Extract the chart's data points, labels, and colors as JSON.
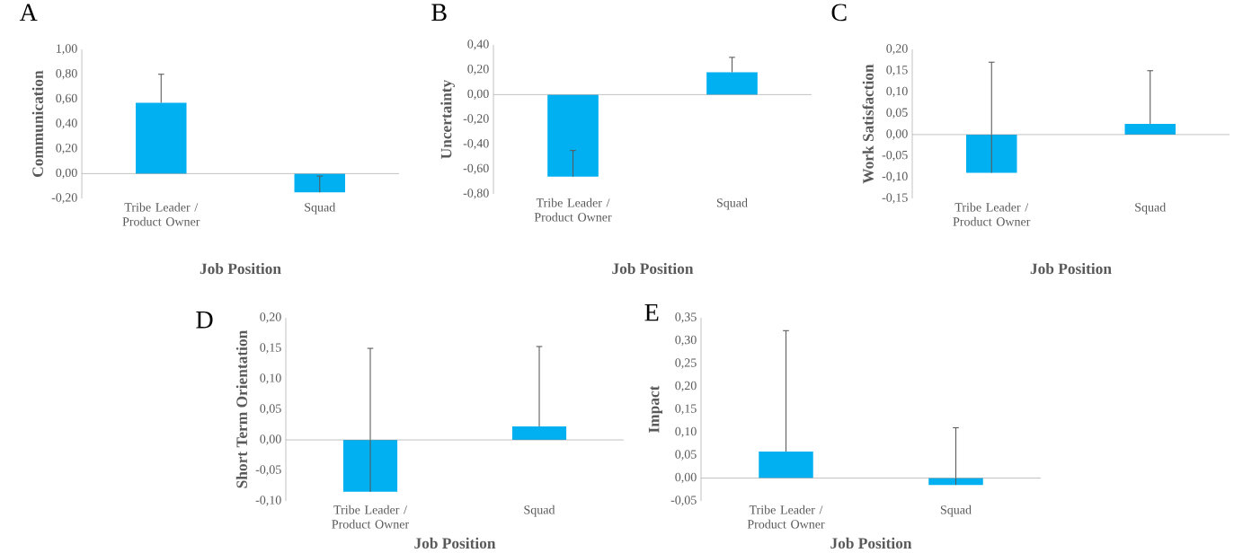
{
  "chart_data": [
    {
      "type": "bar",
      "title": "A",
      "xlabel": "Job Position",
      "ylabel": "Communication",
      "categories": [
        "Tribe Leader / Product Owner",
        "Squad"
      ],
      "values": [
        0.57,
        -0.15
      ],
      "errors": [
        [
          0.57,
          0.8
        ],
        [
          -0.15,
          -0.02
        ]
      ],
      "color": "#00b0f0",
      "ylim": [
        -0.2,
        1.0
      ],
      "yticks": [
        {
          "value": -0.2,
          "label": "-0,20"
        },
        {
          "value": 0,
          "label": "0,00"
        },
        {
          "value": 0.2,
          "label": "0,20"
        },
        {
          "value": 0.4,
          "label": "0,40"
        },
        {
          "value": 0.6,
          "label": "0,60"
        },
        {
          "value": 0.8,
          "label": "0,80"
        },
        {
          "value": 1.0,
          "label": "1,00"
        }
      ]
    },
    {
      "type": "bar",
      "title": "B",
      "xlabel": "Job Position",
      "ylabel": "Uncertainty",
      "categories": [
        "Tribe Leader / Product Owner",
        "Squad"
      ],
      "values": [
        -0.66,
        0.18
      ],
      "errors": [
        [
          -0.66,
          -0.45
        ],
        [
          0.18,
          0.3
        ]
      ],
      "color": "#00b0f0",
      "ylim": [
        -0.8,
        0.4
      ],
      "yticks": [
        {
          "value": -0.8,
          "label": "-0,80"
        },
        {
          "value": -0.6,
          "label": "-0,60"
        },
        {
          "value": -0.4,
          "label": "-0,40"
        },
        {
          "value": -0.2,
          "label": "-0,20"
        },
        {
          "value": 0,
          "label": "0,00"
        },
        {
          "value": 0.2,
          "label": "0,20"
        },
        {
          "value": 0.4,
          "label": "0,40"
        }
      ]
    },
    {
      "type": "bar",
      "title": "C",
      "xlabel": "Job Position",
      "ylabel": "Work Satisfaction",
      "categories": [
        "Tribe Leader / Product Owner",
        "Squad"
      ],
      "values": [
        -0.09,
        0.025
      ],
      "errors": [
        [
          -0.09,
          0.17
        ],
        [
          0.025,
          0.15
        ]
      ],
      "color": "#00b0f0",
      "ylim": [
        -0.15,
        0.2
      ],
      "yticks": [
        {
          "value": -0.15,
          "label": "-0,15"
        },
        {
          "value": -0.1,
          "label": "-0,10"
        },
        {
          "value": -0.05,
          "label": "-0,05"
        },
        {
          "value": 0,
          "label": "0,00"
        },
        {
          "value": 0.05,
          "label": "0,05"
        },
        {
          "value": 0.1,
          "label": "0,10"
        },
        {
          "value": 0.15,
          "label": "0,15"
        },
        {
          "value": 0.2,
          "label": "0,20"
        }
      ]
    },
    {
      "type": "bar",
      "title": "D",
      "xlabel": "Job Position",
      "ylabel": "Short Term Orientation",
      "categories": [
        "Tribe Leader / Product Owner",
        "Squad"
      ],
      "values": [
        -0.085,
        0.022
      ],
      "errors": [
        [
          -0.085,
          0.15
        ],
        [
          0.022,
          0.153
        ]
      ],
      "color": "#00b0f0",
      "ylim": [
        -0.1,
        0.2
      ],
      "yticks": [
        {
          "value": -0.1,
          "label": "-0,10"
        },
        {
          "value": -0.05,
          "label": "-0,05"
        },
        {
          "value": 0,
          "label": "0,00"
        },
        {
          "value": 0.05,
          "label": "0,05"
        },
        {
          "value": 0.1,
          "label": "0,10"
        },
        {
          "value": 0.15,
          "label": "0,15"
        },
        {
          "value": 0.2,
          "label": "0,20"
        }
      ]
    },
    {
      "type": "bar",
      "title": "E",
      "xlabel": "Job Position",
      "ylabel": "Impact",
      "categories": [
        "Tribe Leader / Product Owner",
        "Squad"
      ],
      "values": [
        0.058,
        -0.015
      ],
      "errors": [
        [
          0.058,
          0.322
        ],
        [
          -0.015,
          0.11
        ]
      ],
      "color": "#00b0f0",
      "ylim": [
        -0.05,
        0.35
      ],
      "yticks": [
        {
          "value": -0.05,
          "label": "-0,05"
        },
        {
          "value": 0,
          "label": "0,00"
        },
        {
          "value": 0.05,
          "label": "0,05"
        },
        {
          "value": 0.1,
          "label": "0,10"
        },
        {
          "value": 0.15,
          "label": "0,15"
        },
        {
          "value": 0.2,
          "label": "0,20"
        },
        {
          "value": 0.25,
          "label": "0,25"
        },
        {
          "value": 0.3,
          "label": "0,30"
        },
        {
          "value": 0.35,
          "label": "0,35"
        }
      ]
    }
  ]
}
